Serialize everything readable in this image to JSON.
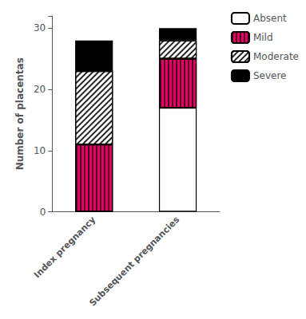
{
  "chart_data": {
    "type": "bar",
    "stacked": true,
    "categories": [
      "Index pregnancy",
      "Subsequent pregnancies"
    ],
    "series": [
      {
        "name": "Absent",
        "color": "#ffffff",
        "values": [
          0,
          17
        ]
      },
      {
        "name": "Mild",
        "color": "#e8005a",
        "values": [
          11,
          8
        ]
      },
      {
        "name": "Moderate",
        "color": "#ffffff",
        "values": [
          12,
          3
        ]
      },
      {
        "name": "Severe",
        "color": "#000000",
        "values": [
          5,
          2
        ]
      }
    ],
    "ylabel": "Number of placentas",
    "ylim": [
      0,
      32
    ],
    "yticks": [
      0,
      10,
      20,
      30
    ],
    "grid": false,
    "legend": "upper right"
  }
}
